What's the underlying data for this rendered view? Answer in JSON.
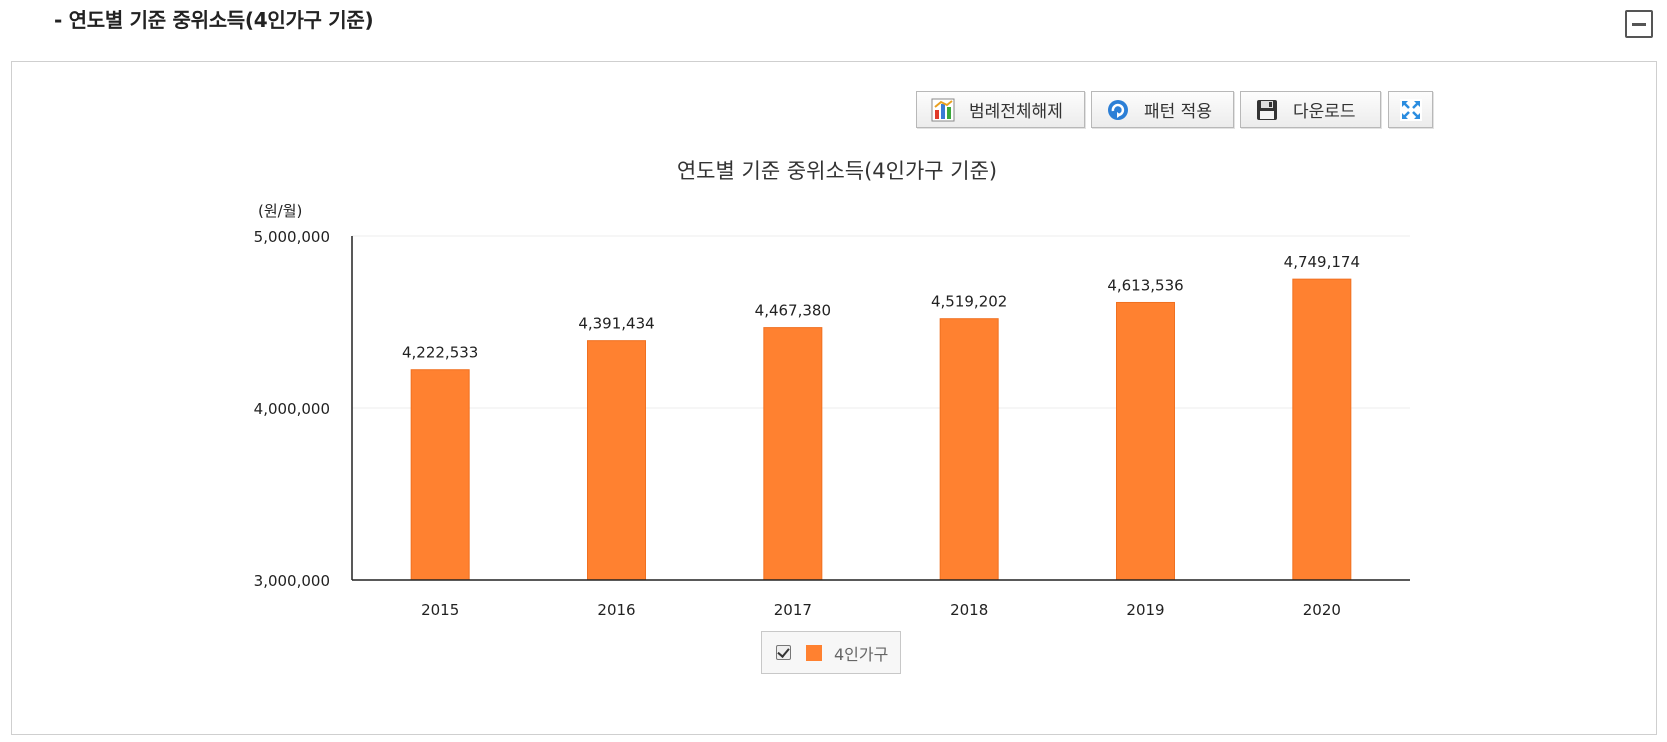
{
  "header": {
    "section_title": "- 연도별 기준 중위소득(4인가구 기준)"
  },
  "toolbar": {
    "legend_toggle_label": "범례전체해제",
    "pattern_label": "패턴 적용",
    "download_label": "다운로드"
  },
  "colors": {
    "bar": "#ff8130",
    "bar_stroke": "#f07020",
    "axis": "#222222",
    "grid": "#eeeeee"
  },
  "legend": {
    "checked": true,
    "label": "4인가구"
  },
  "chart_data": {
    "type": "bar",
    "title": "연도별 기준 중위소득(4인가구 기준)",
    "ylabel": "(원/월)",
    "xlabel": "",
    "categories": [
      "2015",
      "2016",
      "2017",
      "2018",
      "2019",
      "2020"
    ],
    "series": [
      {
        "name": "4인가구",
        "values": [
          4222533,
          4391434,
          4467380,
          4519202,
          4613536,
          4749174
        ],
        "labels": [
          "4,222,533",
          "4,391,434",
          "4,467,380",
          "4,519,202",
          "4,613,536",
          "4,749,174"
        ]
      }
    ],
    "ylim": [
      3000000,
      5000000
    ],
    "yticks": [
      3000000,
      4000000,
      5000000
    ],
    "ytick_labels": [
      "3,000,000",
      "4,000,000",
      "5,000,000"
    ],
    "grid": true,
    "legend_position": "bottom"
  }
}
